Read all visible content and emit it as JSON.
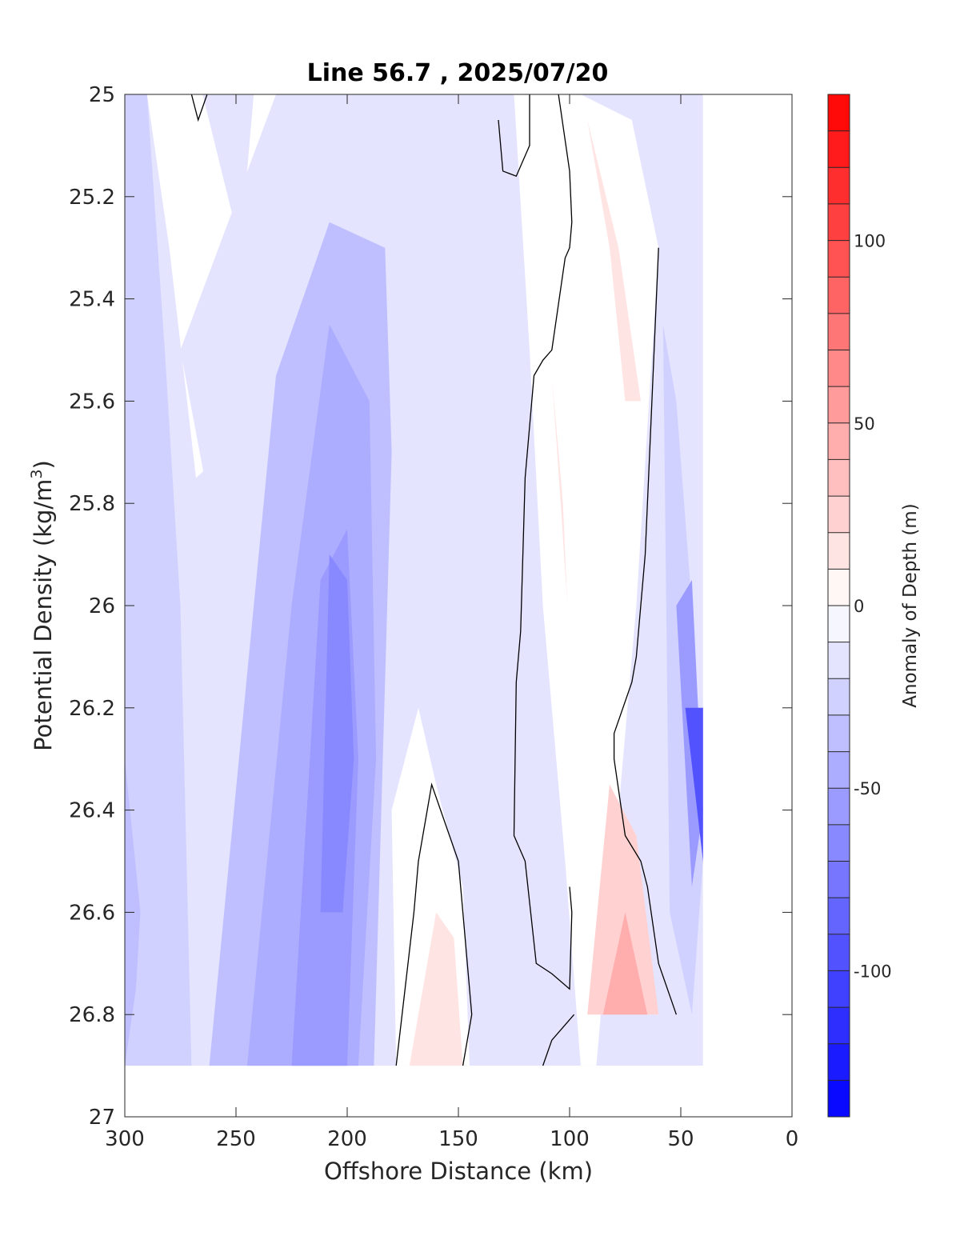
{
  "chart_data": {
    "type": "heatmap",
    "subtype": "filled-contour",
    "title": "Line 56.7 , 2025/07/20",
    "xlabel": "Offshore Distance (km)",
    "ylabel_main": "Potential Density (kg/m",
    "ylabel_sup": "3",
    "ylabel_close": ")",
    "xlim": [
      300,
      0
    ],
    "x_reversed": true,
    "ylim": [
      25,
      27
    ],
    "y_reversed": true,
    "xticks": [
      300,
      250,
      200,
      150,
      100,
      50,
      0
    ],
    "xtick_labels": [
      "300",
      "250",
      "200",
      "150",
      "100",
      "50",
      "0"
    ],
    "yticks": [
      25,
      25.2,
      25.4,
      25.6,
      25.8,
      26,
      26.2,
      26.4,
      26.6,
      26.8,
      27
    ],
    "ytick_labels": [
      "25",
      "25.2",
      "25.4",
      "25.6",
      "25.8",
      "26",
      "26.2",
      "26.4",
      "26.6",
      "26.8",
      "27"
    ],
    "colorbar": {
      "label": "Anomaly of Depth (m)",
      "range": [
        -140,
        140
      ],
      "step": 10,
      "ticks": [
        100,
        50,
        0,
        -50,
        -100
      ],
      "tick_labels": [
        "100",
        "50",
        "0",
        "-50",
        "-100"
      ],
      "colormap": "blue-white-red",
      "low_color": "#0000ff",
      "mid_color": "#ffffff",
      "high_color": "#ff0000"
    },
    "zero_contour_color": "#000000",
    "grid": false,
    "data_extent": {
      "x_min_km": 40,
      "x_max_km": 300,
      "sigma_min": 25.0,
      "sigma_max": 26.9
    },
    "regions": [
      {
        "name": "offshore-edge-band",
        "level": -25,
        "x": [
          300,
          290,
          282,
          275,
          270,
          285,
          300
        ],
        "y": [
          25.0,
          25.0,
          25.5,
          26.0,
          26.9,
          26.9,
          26.9
        ]
      },
      {
        "name": "offshore-core",
        "level": -35,
        "x": [
          300,
          293,
          295,
          300
        ],
        "y": [
          26.3,
          26.6,
          26.75,
          26.9
        ]
      },
      {
        "name": "offshore-white-patch",
        "level": 0,
        "x": [
          290,
          275,
          265,
          248,
          242,
          232,
          240,
          255,
          268,
          280,
          290
        ],
        "y": [
          25.0,
          25.0,
          25.0,
          25.3,
          25.0,
          25.0,
          25.55,
          25.7,
          25.75,
          25.3,
          25.0
        ]
      },
      {
        "name": "mid-light-band",
        "level": -15,
        "x": [
          275,
          232,
          225,
          248,
          262,
          275
        ],
        "y": [
          25.5,
          25.0,
          25.6,
          25.95,
          25.8,
          25.5
        ]
      },
      {
        "name": "main-trough-outer",
        "level": -35,
        "x": [
          262,
          232,
          208,
          183,
          180,
          188,
          200,
          212,
          230,
          262
        ],
        "y": [
          26.9,
          25.55,
          25.25,
          25.3,
          25.7,
          26.9,
          26.9,
          26.9,
          26.9,
          26.9
        ]
      },
      {
        "name": "main-trough-mid",
        "level": -45,
        "x": [
          245,
          225,
          208,
          190,
          187,
          195,
          212,
          245
        ],
        "y": [
          26.9,
          26.0,
          25.45,
          25.6,
          26.3,
          26.9,
          26.9,
          26.9
        ]
      },
      {
        "name": "main-trough-inner",
        "level": -55,
        "x": [
          225,
          212,
          200,
          195,
          200,
          212,
          225
        ],
        "y": [
          26.9,
          25.95,
          25.85,
          26.3,
          26.9,
          26.9,
          26.9
        ]
      },
      {
        "name": "main-trough-core",
        "level": -65,
        "x": [
          212,
          208,
          200,
          197,
          202,
          212
        ],
        "y": [
          26.6,
          25.9,
          25.95,
          26.3,
          26.6,
          26.6
        ]
      },
      {
        "name": "inner-white-gap",
        "level": 0,
        "x": [
          180,
          168,
          160,
          148,
          145,
          155,
          165,
          178,
          180
        ],
        "y": [
          26.4,
          26.2,
          26.35,
          26.55,
          26.9,
          26.9,
          26.9,
          26.9,
          26.4
        ]
      },
      {
        "name": "inner-pink-blob",
        "level": 15,
        "x": [
          172,
          160,
          152,
          148,
          155,
          165,
          172
        ],
        "y": [
          26.9,
          26.6,
          26.65,
          26.9,
          26.9,
          26.9,
          26.9
        ]
      },
      {
        "name": "shelf-white-wedge",
        "level": 0,
        "x": [
          125,
          118,
          112,
          102,
          95,
          88,
          78,
          70,
          60,
          72,
          95,
          110,
          125
        ],
        "y": [
          25.0,
          25.5,
          26.0,
          26.5,
          26.9,
          26.9,
          26.4,
          26.0,
          25.3,
          25.05,
          25.0,
          25.0,
          25.0
        ]
      },
      {
        "name": "shelf-pink-strip",
        "level": 15,
        "x": [
          92,
          82,
          75,
          68,
          78,
          92
        ],
        "y": [
          25.05,
          25.3,
          25.6,
          25.6,
          25.3,
          25.05
        ]
      },
      {
        "name": "shelf-pink-thin",
        "level": 15,
        "x": [
          108,
          103,
          101,
          104,
          108
        ],
        "y": [
          25.55,
          25.8,
          26.0,
          25.8,
          25.55
        ]
      },
      {
        "name": "deep-pink-lobe",
        "level": 25,
        "x": [
          92,
          82,
          70,
          60,
          75,
          92
        ],
        "y": [
          26.8,
          26.35,
          26.45,
          26.8,
          26.8,
          26.8
        ]
      },
      {
        "name": "deep-pink-core",
        "level": 45,
        "x": [
          85,
          75,
          65,
          75,
          85
        ],
        "y": [
          26.8,
          26.6,
          26.8,
          26.8,
          26.8
        ]
      },
      {
        "name": "nearshore-blue-outer",
        "level": -25,
        "x": [
          58,
          52,
          45,
          40,
          45,
          55,
          58
        ],
        "y": [
          25.45,
          25.6,
          26.0,
          26.5,
          26.8,
          26.6,
          25.45
        ]
      },
      {
        "name": "nearshore-blue-mid",
        "level": -55,
        "x": [
          52,
          45,
          40,
          45,
          52
        ],
        "y": [
          26.0,
          25.95,
          26.4,
          26.55,
          26.0
        ]
      },
      {
        "name": "nearshore-blue-core",
        "level": -95,
        "x": [
          48,
          40,
          40,
          48
        ],
        "y": [
          26.2,
          26.2,
          26.5,
          26.2
        ]
      }
    ],
    "zero_contours": [
      {
        "x": [
          270,
          267,
          263
        ],
        "y": [
          25.0,
          25.05,
          25.0
        ]
      },
      {
        "x": [
          132,
          130,
          124,
          118,
          118
        ],
        "y": [
          25.05,
          25.15,
          25.16,
          25.1,
          25.0
        ]
      },
      {
        "x": [
          105,
          100,
          99,
          100,
          102,
          108,
          112,
          116,
          120,
          122,
          124,
          125,
          120,
          115,
          108,
          100,
          99,
          100
        ],
        "y": [
          25.0,
          25.15,
          25.25,
          25.3,
          25.32,
          25.5,
          25.52,
          25.55,
          25.75,
          26.05,
          26.15,
          26.45,
          26.5,
          26.7,
          26.72,
          26.75,
          26.6,
          26.55
        ]
      },
      {
        "x": [
          60,
          63,
          66,
          70,
          72,
          76,
          80,
          80,
          75,
          68,
          65,
          60,
          52
        ],
        "y": [
          25.3,
          25.6,
          25.9,
          26.1,
          26.15,
          26.2,
          26.25,
          26.3,
          26.45,
          26.5,
          26.55,
          26.7,
          26.8
        ]
      },
      {
        "x": [
          178,
          170,
          168,
          162,
          150,
          148,
          144,
          148
        ],
        "y": [
          26.9,
          26.6,
          26.5,
          26.35,
          26.5,
          26.6,
          26.8,
          26.9
        ]
      },
      {
        "x": [
          112,
          108,
          98
        ],
        "y": [
          26.9,
          26.85,
          26.8
        ]
      }
    ]
  }
}
